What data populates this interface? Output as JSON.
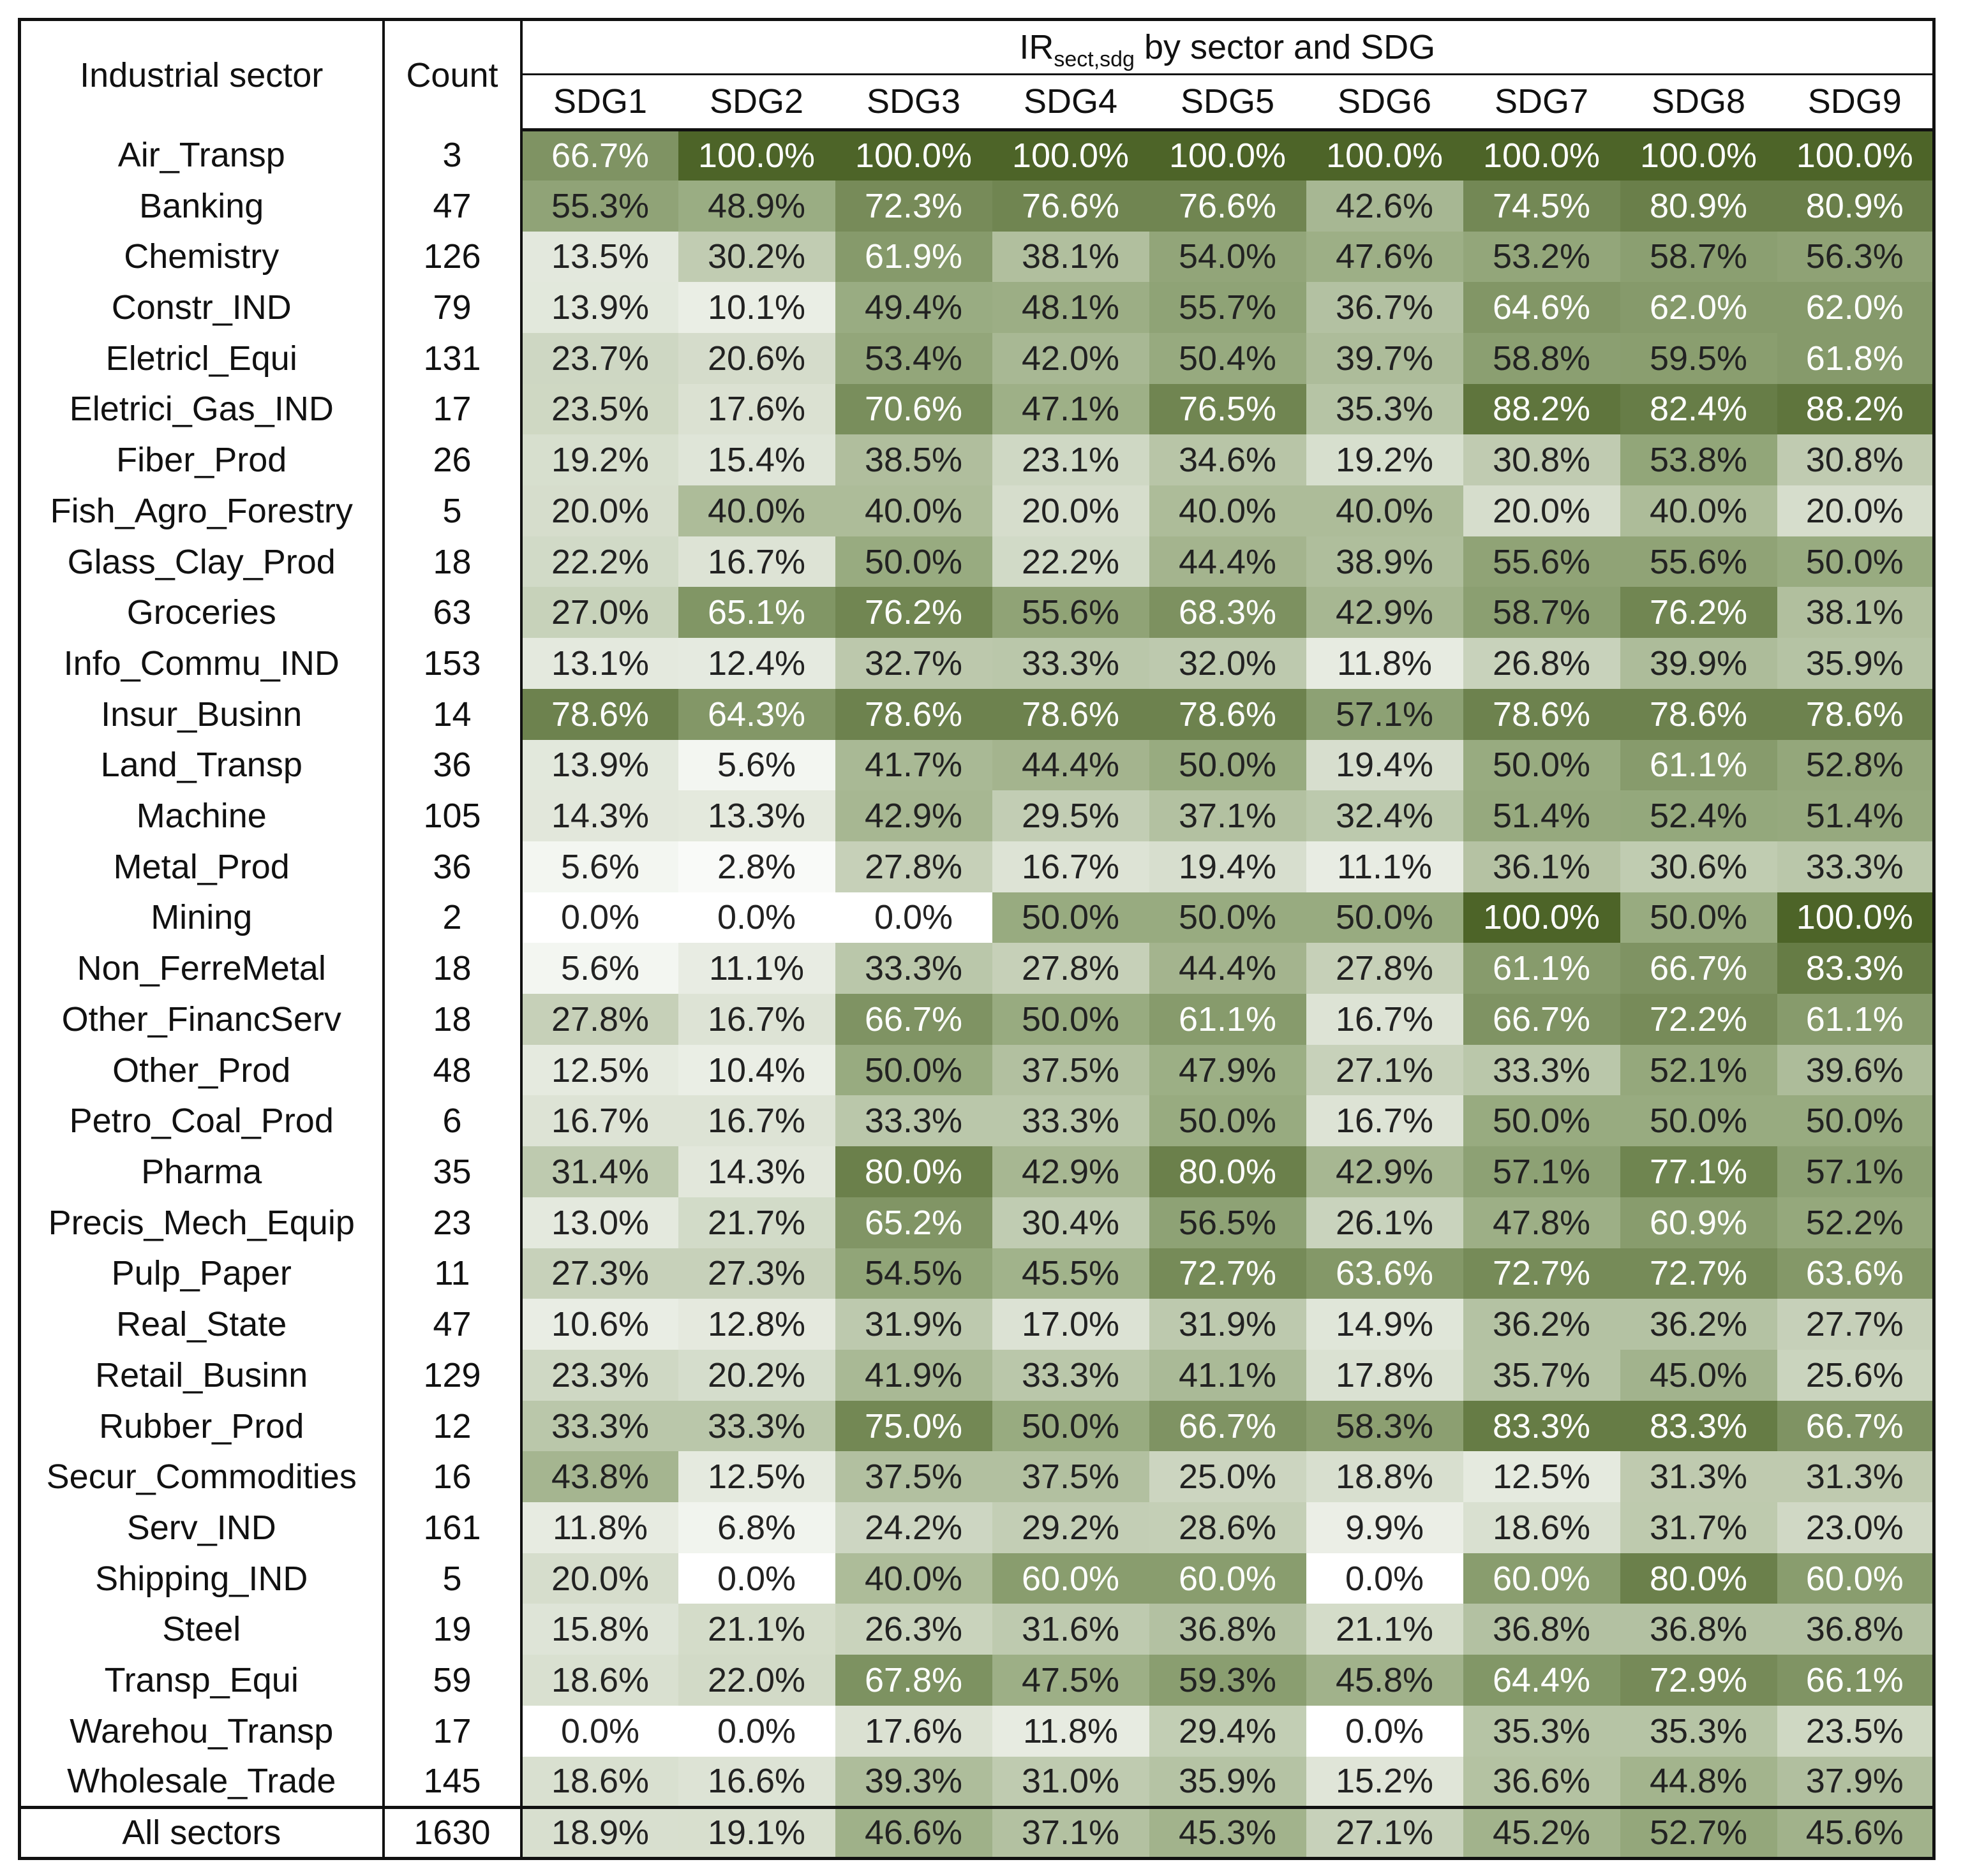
{
  "table": {
    "header": {
      "sector_label": "Industrial sector",
      "count_label": "Count",
      "title_main": "IR",
      "title_sub": "sect,sdg",
      "title_rest": " by sector and SDG",
      "sdgs": [
        "SDG1",
        "SDG2",
        "SDG3",
        "SDG4",
        "SDG5",
        "SDG6",
        "SDG7",
        "SDG8",
        "SDG9"
      ]
    },
    "rows": [
      {
        "sector": "Air_Transp",
        "count": "3",
        "values": [
          66.7,
          100.0,
          100.0,
          100.0,
          100.0,
          100.0,
          100.0,
          100.0,
          100.0
        ]
      },
      {
        "sector": "Banking",
        "count": "47",
        "values": [
          55.3,
          48.9,
          72.3,
          76.6,
          76.6,
          42.6,
          74.5,
          80.9,
          80.9
        ]
      },
      {
        "sector": "Chemistry",
        "count": "126",
        "values": [
          13.5,
          30.2,
          61.9,
          38.1,
          54.0,
          47.6,
          53.2,
          58.7,
          56.3
        ]
      },
      {
        "sector": "Constr_IND",
        "count": "79",
        "values": [
          13.9,
          10.1,
          49.4,
          48.1,
          55.7,
          36.7,
          64.6,
          62.0,
          62.0
        ]
      },
      {
        "sector": "Eletricl_Equi",
        "count": "131",
        "values": [
          23.7,
          20.6,
          53.4,
          42.0,
          50.4,
          39.7,
          58.8,
          59.5,
          61.8
        ]
      },
      {
        "sector": "Eletrici_Gas_IND",
        "count": "17",
        "values": [
          23.5,
          17.6,
          70.6,
          47.1,
          76.5,
          35.3,
          88.2,
          82.4,
          88.2
        ]
      },
      {
        "sector": "Fiber_Prod",
        "count": "26",
        "values": [
          19.2,
          15.4,
          38.5,
          23.1,
          34.6,
          19.2,
          30.8,
          53.8,
          30.8
        ]
      },
      {
        "sector": "Fish_Agro_Forestry",
        "count": "5",
        "values": [
          20.0,
          40.0,
          40.0,
          20.0,
          40.0,
          40.0,
          20.0,
          40.0,
          20.0
        ]
      },
      {
        "sector": "Glass_Clay_Prod",
        "count": "18",
        "values": [
          22.2,
          16.7,
          50.0,
          22.2,
          44.4,
          38.9,
          55.6,
          55.6,
          50.0
        ]
      },
      {
        "sector": "Groceries",
        "count": "63",
        "values": [
          27.0,
          65.1,
          76.2,
          55.6,
          68.3,
          42.9,
          58.7,
          76.2,
          38.1
        ]
      },
      {
        "sector": "Info_Commu_IND",
        "count": "153",
        "values": [
          13.1,
          12.4,
          32.7,
          33.3,
          32.0,
          11.8,
          26.8,
          39.9,
          35.9
        ]
      },
      {
        "sector": "Insur_Businn",
        "count": "14",
        "values": [
          78.6,
          64.3,
          78.6,
          78.6,
          78.6,
          57.1,
          78.6,
          78.6,
          78.6
        ]
      },
      {
        "sector": "Land_Transp",
        "count": "36",
        "values": [
          13.9,
          5.6,
          41.7,
          44.4,
          50.0,
          19.4,
          50.0,
          61.1,
          52.8
        ]
      },
      {
        "sector": "Machine",
        "count": "105",
        "values": [
          14.3,
          13.3,
          42.9,
          29.5,
          37.1,
          32.4,
          51.4,
          52.4,
          51.4
        ]
      },
      {
        "sector": "Metal_Prod",
        "count": "36",
        "values": [
          5.6,
          2.8,
          27.8,
          16.7,
          19.4,
          11.1,
          36.1,
          30.6,
          33.3
        ]
      },
      {
        "sector": "Mining",
        "count": "2",
        "values": [
          0.0,
          0.0,
          0.0,
          50.0,
          50.0,
          50.0,
          100.0,
          50.0,
          100.0
        ]
      },
      {
        "sector": "Non_FerreMetal",
        "count": "18",
        "values": [
          5.6,
          11.1,
          33.3,
          27.8,
          44.4,
          27.8,
          61.1,
          66.7,
          83.3
        ]
      },
      {
        "sector": "Other_FinancServ",
        "count": "18",
        "values": [
          27.8,
          16.7,
          66.7,
          50.0,
          61.1,
          16.7,
          66.7,
          72.2,
          61.1
        ]
      },
      {
        "sector": "Other_Prod",
        "count": "48",
        "values": [
          12.5,
          10.4,
          50.0,
          37.5,
          47.9,
          27.1,
          33.3,
          52.1,
          39.6
        ]
      },
      {
        "sector": "Petro_Coal_Prod",
        "count": "6",
        "values": [
          16.7,
          16.7,
          33.3,
          33.3,
          50.0,
          16.7,
          50.0,
          50.0,
          50.0
        ]
      },
      {
        "sector": "Pharma",
        "count": "35",
        "values": [
          31.4,
          14.3,
          80.0,
          42.9,
          80.0,
          42.9,
          57.1,
          77.1,
          57.1
        ]
      },
      {
        "sector": "Precis_Mech_Equip",
        "count": "23",
        "values": [
          13.0,
          21.7,
          65.2,
          30.4,
          56.5,
          26.1,
          47.8,
          60.9,
          52.2
        ]
      },
      {
        "sector": "Pulp_Paper",
        "count": "11",
        "values": [
          27.3,
          27.3,
          54.5,
          45.5,
          72.7,
          63.6,
          72.7,
          72.7,
          63.6
        ]
      },
      {
        "sector": "Real_State",
        "count": "47",
        "values": [
          10.6,
          12.8,
          31.9,
          17.0,
          31.9,
          14.9,
          36.2,
          36.2,
          27.7
        ]
      },
      {
        "sector": "Retail_Businn",
        "count": "129",
        "values": [
          23.3,
          20.2,
          41.9,
          33.3,
          41.1,
          17.8,
          35.7,
          45.0,
          25.6
        ]
      },
      {
        "sector": "Rubber_Prod",
        "count": "12",
        "values": [
          33.3,
          33.3,
          75.0,
          50.0,
          66.7,
          58.3,
          83.3,
          83.3,
          66.7
        ]
      },
      {
        "sector": "Secur_Commodities",
        "count": "16",
        "values": [
          43.8,
          12.5,
          37.5,
          37.5,
          25.0,
          18.8,
          12.5,
          31.3,
          31.3
        ]
      },
      {
        "sector": "Serv_IND",
        "count": "161",
        "values": [
          11.8,
          6.8,
          24.2,
          29.2,
          28.6,
          9.9,
          18.6,
          31.7,
          23.0
        ]
      },
      {
        "sector": "Shipping_IND",
        "count": "5",
        "values": [
          20.0,
          0.0,
          40.0,
          60.0,
          60.0,
          0.0,
          60.0,
          80.0,
          60.0
        ]
      },
      {
        "sector": "Steel",
        "count": "19",
        "values": [
          15.8,
          21.1,
          26.3,
          31.6,
          36.8,
          21.1,
          36.8,
          36.8,
          36.8
        ]
      },
      {
        "sector": "Transp_Equi",
        "count": "59",
        "values": [
          18.6,
          22.0,
          67.8,
          47.5,
          59.3,
          45.8,
          64.4,
          72.9,
          66.1
        ]
      },
      {
        "sector": "Warehou_Transp",
        "count": "17",
        "values": [
          0.0,
          0.0,
          17.6,
          11.8,
          29.4,
          0.0,
          35.3,
          35.3,
          23.5
        ]
      },
      {
        "sector": "Wholesale_Trade",
        "count": "145",
        "values": [
          18.6,
          16.6,
          39.3,
          31.0,
          35.9,
          15.2,
          36.6,
          44.8,
          37.9
        ]
      }
    ],
    "total": {
      "sector": "All sectors",
      "count": "1630",
      "values": [
        18.9,
        19.1,
        46.6,
        37.1,
        45.3,
        27.1,
        45.2,
        52.7,
        45.6
      ]
    }
  },
  "colors": {
    "heat_low": "#ffffff",
    "heat_mid": "#98ab80",
    "heat_high": "#4d6428",
    "text_dark": "#222222",
    "text_light": "#ffffff",
    "border": "#111111"
  }
}
